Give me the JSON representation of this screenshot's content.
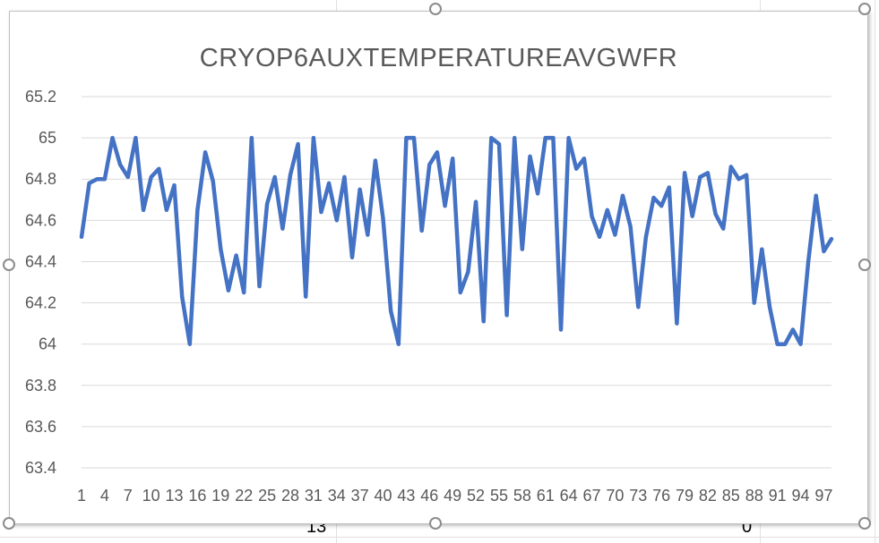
{
  "sheet": {
    "cell_left": "13",
    "cell_right": "0"
  },
  "chart_data": {
    "type": "line",
    "title": "CRYOP6AUXTEMPERATUREAVGWFR",
    "xlabel": "",
    "ylabel": "",
    "ylim": [
      63.4,
      65.2
    ],
    "yticks": [
      "65.2",
      "65",
      "64.8",
      "64.6",
      "64.4",
      "64.2",
      "64",
      "63.8",
      "63.6",
      "63.4"
    ],
    "xtick_labels": [
      "1",
      "4",
      "7",
      "10",
      "13",
      "16",
      "19",
      "22",
      "25",
      "28",
      "31",
      "34",
      "37",
      "40",
      "43",
      "46",
      "49",
      "52",
      "55",
      "58",
      "61",
      "64",
      "67",
      "70",
      "73",
      "76",
      "79",
      "82",
      "85",
      "88",
      "91",
      "94",
      "97"
    ],
    "grid": true,
    "legend": "none",
    "line_color": "#4472c4",
    "x": [
      1,
      2,
      3,
      4,
      5,
      6,
      7,
      8,
      9,
      10,
      11,
      12,
      13,
      14,
      15,
      16,
      17,
      18,
      19,
      20,
      21,
      22,
      23,
      24,
      25,
      26,
      27,
      28,
      29,
      30,
      31,
      32,
      33,
      34,
      35,
      36,
      37,
      38,
      39,
      40,
      41,
      42,
      43,
      44,
      45,
      46,
      47,
      48,
      49,
      50,
      51,
      52,
      53,
      54,
      55,
      56,
      57,
      58,
      59,
      60,
      61,
      62,
      63,
      64,
      65,
      66,
      67,
      68,
      69,
      70,
      71,
      72,
      73,
      74,
      75,
      76,
      77,
      78,
      79,
      80,
      81,
      82,
      83,
      84,
      85,
      86,
      87,
      88,
      89,
      90,
      91,
      92,
      93,
      94,
      95,
      96,
      97,
      98
    ],
    "series": [
      {
        "values": [
          64.52,
          64.78,
          64.8,
          64.8,
          65.0,
          64.87,
          64.81,
          65.0,
          64.65,
          64.81,
          64.85,
          64.65,
          64.77,
          64.23,
          64.0,
          64.65,
          64.93,
          64.79,
          64.46,
          64.26,
          64.43,
          64.25,
          65.0,
          64.28,
          64.68,
          64.81,
          64.56,
          64.82,
          64.97,
          64.23,
          65.0,
          64.64,
          64.78,
          64.6,
          64.81,
          64.42,
          64.75,
          64.53,
          64.89,
          64.61,
          64.16,
          64.0,
          65.0,
          65.0,
          64.55,
          64.87,
          64.93,
          64.67,
          64.9,
          64.25,
          64.35,
          64.69,
          64.11,
          65.0,
          64.97,
          64.14,
          65.0,
          64.46,
          64.91,
          64.73,
          65.0,
          65.0,
          64.07,
          65.0,
          64.85,
          64.9,
          64.62,
          64.52,
          64.65,
          64.53,
          64.72,
          64.57,
          64.18,
          64.52,
          64.71,
          64.67,
          64.76,
          64.1,
          64.83,
          64.62,
          64.81,
          64.83,
          64.63,
          64.56,
          64.86,
          64.8,
          64.82,
          64.2,
          64.46,
          64.18,
          64.0,
          64.0,
          64.07,
          64.0,
          64.4,
          64.72,
          64.45,
          64.51
        ]
      }
    ]
  }
}
